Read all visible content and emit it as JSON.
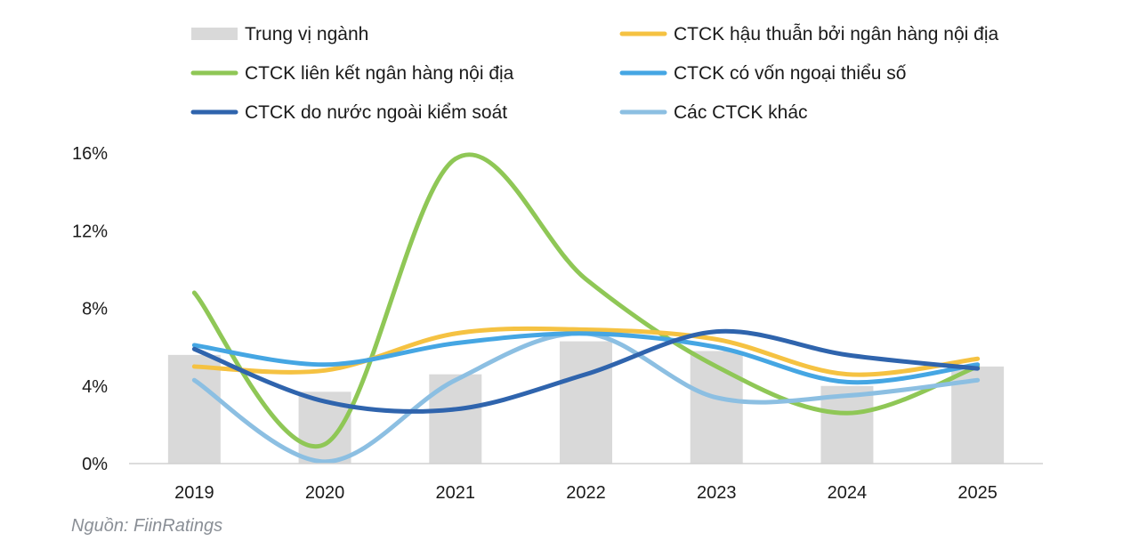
{
  "chart_data": {
    "type": "bar",
    "categories": [
      "2019",
      "2020",
      "2021",
      "2022",
      "2023",
      "2024",
      "2025"
    ],
    "ylim": [
      0,
      16
    ],
    "yticks": [
      0,
      4,
      8,
      12,
      16
    ],
    "ytick_labels": [
      "0%",
      "4%",
      "8%",
      "12%",
      "16%"
    ],
    "grid": false,
    "legend_position": "top",
    "bars": {
      "name": "Trung vị ngành",
      "color": "#d9d9d9",
      "values": [
        5.6,
        3.7,
        4.6,
        6.3,
        5.8,
        4.0,
        5.0
      ]
    },
    "series": [
      {
        "name": "CTCK hậu thuẫn bởi ngân hàng nội địa",
        "type": "line",
        "color": "#f5c242",
        "values": [
          5.0,
          4.8,
          6.7,
          6.9,
          6.4,
          4.6,
          5.4
        ]
      },
      {
        "name": "CTCK liên kết ngân hàng nội địa",
        "type": "line",
        "color": "#8fc756",
        "values": [
          8.8,
          1.0,
          15.7,
          9.5,
          5.0,
          2.6,
          5.0
        ]
      },
      {
        "name": "CTCK có vốn ngoại thiểu số",
        "type": "line",
        "color": "#45a6e3",
        "values": [
          6.1,
          5.1,
          6.2,
          6.7,
          6.0,
          4.2,
          5.1
        ]
      },
      {
        "name": "CTCK do nước ngoài kiểm soát",
        "type": "line",
        "color": "#2f64ad",
        "values": [
          5.9,
          3.2,
          2.8,
          4.6,
          6.8,
          5.6,
          4.9
        ]
      },
      {
        "name": "Các CTCK khác",
        "type": "line",
        "color": "#8cbfe2",
        "values": [
          4.3,
          0.1,
          4.3,
          6.7,
          3.4,
          3.5,
          4.3
        ]
      }
    ],
    "source": "Nguồn: FiinRatings"
  }
}
